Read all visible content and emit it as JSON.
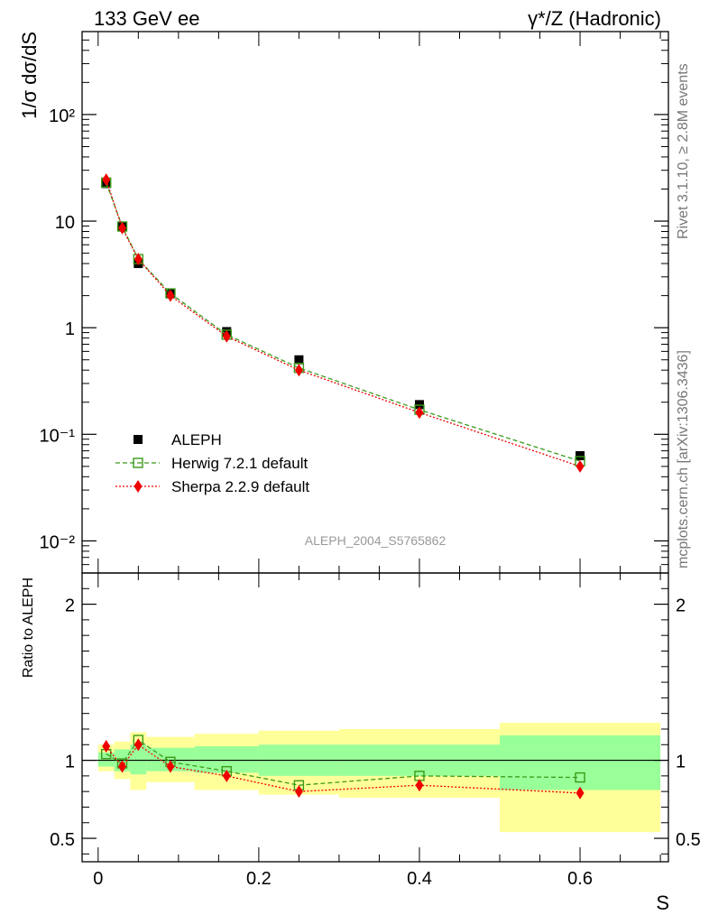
{
  "header": {
    "left_title": "133 GeV ee",
    "right_title": "γ*/Z (Hadronic)",
    "side_text_top": "Rivet 3.1.10, ≥ 2.8M events",
    "side_text_bottom": "mcplots.cern.ch [arXiv:1306.3436]",
    "analysis_id": "ALEPH_2004_S5765862"
  },
  "chart_data": [
    {
      "type": "scatter",
      "panel": "main",
      "ylabel": "1/σ  dσ/dS",
      "xlim": [
        -0.02,
        0.71
      ],
      "ylim": [
        0.005,
        600
      ],
      "y_scale": "log",
      "y_ticks": [
        "10⁻²",
        "10⁻¹",
        "1",
        "10",
        "10²"
      ],
      "x": [
        0.01,
        0.03,
        0.05,
        0.09,
        0.16,
        0.25,
        0.4,
        0.6
      ],
      "legend_position": "bottom-left",
      "series": [
        {
          "name": "ALEPH",
          "color": "#000000",
          "marker": "filled-square",
          "line": "none",
          "values": [
            22.5,
            9.0,
            4.0,
            2.1,
            0.92,
            0.5,
            0.19,
            0.063
          ]
        },
        {
          "name": "Herwig 7.2.1 default",
          "color": "#3a9a1a",
          "marker": "open-square",
          "line": "dashed",
          "values": [
            23.0,
            8.9,
            4.4,
            2.1,
            0.86,
            0.42,
            0.17,
            0.056
          ]
        },
        {
          "name": "Sherpa 2.2.9 default",
          "color": "#ee0000",
          "marker": "diamond",
          "line": "dotted",
          "values": [
            24.5,
            8.6,
            4.4,
            2.0,
            0.83,
            0.4,
            0.16,
            0.05
          ]
        }
      ]
    },
    {
      "type": "line",
      "panel": "ratio",
      "ylabel": "Ratio to ALEPH",
      "xlabel": "S",
      "xlim": [
        -0.02,
        0.71
      ],
      "ylim": [
        0.35,
        2.2
      ],
      "y_ticks": [
        "0.5",
        "1",
        "2"
      ],
      "x_ticks": [
        "0",
        "0.2",
        "0.4",
        "0.6"
      ],
      "reference_line": 1.0,
      "uncertainty_bands": {
        "bins": [
          [
            0.0,
            0.02
          ],
          [
            0.02,
            0.04
          ],
          [
            0.04,
            0.06
          ],
          [
            0.06,
            0.12
          ],
          [
            0.12,
            0.2
          ],
          [
            0.2,
            0.3
          ],
          [
            0.3,
            0.5
          ],
          [
            0.5,
            0.7
          ]
        ],
        "inner": [
          [
            0.96,
            1.05
          ],
          [
            0.93,
            1.07
          ],
          [
            0.91,
            1.1
          ],
          [
            0.93,
            1.08
          ],
          [
            0.92,
            1.09
          ],
          [
            0.9,
            1.1
          ],
          [
            0.9,
            1.1
          ],
          [
            0.81,
            1.16
          ]
        ],
        "outer": [
          [
            0.93,
            1.1
          ],
          [
            0.88,
            1.12
          ],
          [
            0.81,
            1.18
          ],
          [
            0.86,
            1.15
          ],
          [
            0.81,
            1.17
          ],
          [
            0.78,
            1.19
          ],
          [
            0.76,
            1.2
          ],
          [
            0.54,
            1.24
          ]
        ],
        "inner_color": "#99ff99",
        "outer_color": "#ffff99"
      },
      "x": [
        0.01,
        0.03,
        0.05,
        0.09,
        0.16,
        0.25,
        0.4,
        0.6
      ],
      "series": [
        {
          "name": "Herwig 7.2.1 default",
          "color": "#3a9a1a",
          "marker": "open-square",
          "line": "dashed",
          "values": [
            1.04,
            0.98,
            1.13,
            0.99,
            0.93,
            0.84,
            0.9,
            0.89
          ]
        },
        {
          "name": "Sherpa 2.2.9 default",
          "color": "#ee0000",
          "marker": "diamond",
          "line": "dotted",
          "values": [
            1.09,
            0.96,
            1.1,
            0.96,
            0.9,
            0.8,
            0.84,
            0.79
          ]
        }
      ]
    }
  ]
}
